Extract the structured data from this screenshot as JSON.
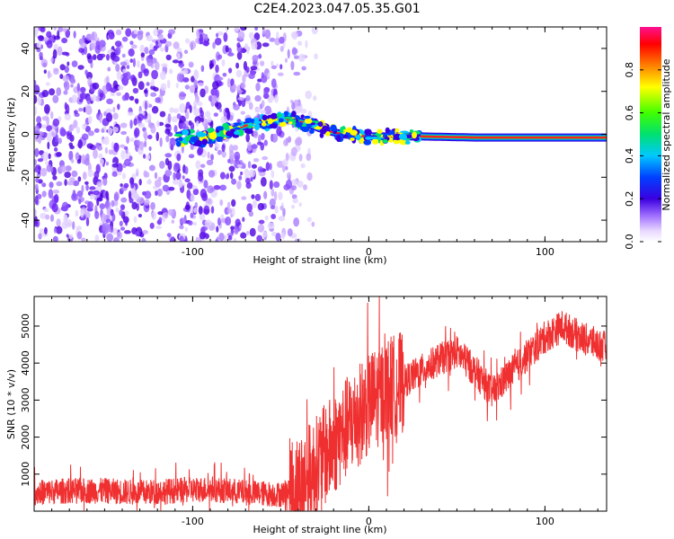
{
  "title": "C2E4.2023.047.05.35.G01",
  "chart_data": [
    {
      "type": "heatmap",
      "xlabel": "Height of straight line (km)",
      "ylabel": "Frequency (Hz)",
      "xlim": [
        -190,
        135
      ],
      "ylim": [
        -50,
        50
      ],
      "xticks": [
        -100,
        0,
        100
      ],
      "yticks": [
        -40,
        -20,
        0,
        20,
        40
      ],
      "colorbar": {
        "label": "Normalized spectral amplitude",
        "range": [
          0,
          1
        ],
        "ticks": [
          0.0,
          0.2,
          0.4,
          0.6,
          0.8
        ]
      },
      "ridge": [
        {
          "x": -100,
          "y": -3
        },
        {
          "x": -85,
          "y": 0
        },
        {
          "x": -70,
          "y": 4
        },
        {
          "x": -55,
          "y": 6
        },
        {
          "x": -45,
          "y": 7
        },
        {
          "x": -35,
          "y": 5
        },
        {
          "x": -25,
          "y": 2
        },
        {
          "x": -15,
          "y": 0
        },
        {
          "x": 0,
          "y": -1
        },
        {
          "x": 15,
          "y": -1
        },
        {
          "x": 30,
          "y": -1
        },
        {
          "x": 60,
          "y": -1.5
        },
        {
          "x": 90,
          "y": -1.5
        },
        {
          "x": 135,
          "y": -1.5
        }
      ],
      "noise_region_x": [
        -190,
        -45
      ]
    },
    {
      "type": "line",
      "xlabel": "Height of straight line (km)",
      "ylabel": "SNR (10 * v/v)",
      "xlim": [
        -190,
        135
      ],
      "ylim": [
        0,
        5800
      ],
      "xticks": [
        -100,
        0,
        100
      ],
      "yticks": [
        1000,
        2000,
        3000,
        4000,
        5000
      ],
      "series": [
        {
          "color": "#f03030",
          "x": [
            -190,
            -170,
            -150,
            -130,
            -110,
            -90,
            -70,
            -50,
            -40,
            -30,
            -20,
            -10,
            0,
            10,
            20,
            30,
            40,
            50,
            60,
            70,
            80,
            90,
            100,
            110,
            120,
            135
          ],
          "y": [
            500,
            550,
            550,
            500,
            550,
            600,
            500,
            450,
            700,
            1200,
            1800,
            2400,
            2900,
            3300,
            3500,
            3800,
            4100,
            4300,
            3800,
            3200,
            3700,
            4200,
            4700,
            5000,
            4700,
            4400
          ]
        }
      ]
    }
  ]
}
